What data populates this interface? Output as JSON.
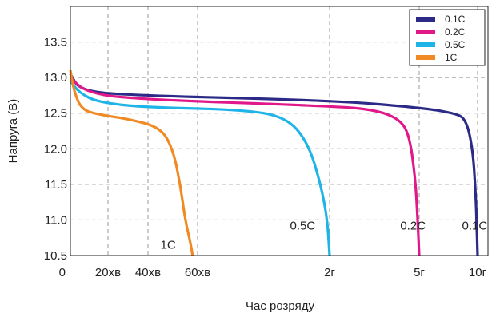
{
  "chart_data": {
    "type": "line",
    "title": "",
    "xlabel": "Час розряду",
    "ylabel": "Напруга (В)",
    "ylim": [
      10.5,
      14.0
    ],
    "grid": true,
    "legend_position": "top-right",
    "y_ticks": [
      "10.5",
      "11.0",
      "11.5",
      "12.0",
      "12.5",
      "13.0",
      "13.5"
    ],
    "x_ticks": [
      {
        "t": 0,
        "label": "0"
      },
      {
        "t": 20,
        "label": "20хв"
      },
      {
        "t": 40,
        "label": "40хв"
      },
      {
        "t": 60,
        "label": "60хв"
      },
      {
        "t": 120,
        "label": "2г"
      },
      {
        "t": 300,
        "label": "5г"
      },
      {
        "t": 600,
        "label": "10г"
      }
    ],
    "series": [
      {
        "name": "0.1C",
        "color": "#2b2a86",
        "points": [
          [
            0,
            13.05
          ],
          [
            5,
            12.82
          ],
          [
            30,
            12.75
          ],
          [
            120,
            12.68
          ],
          [
            300,
            12.58
          ],
          [
            480,
            12.5
          ],
          [
            540,
            12.42
          ],
          [
            575,
            12.0
          ],
          [
            590,
            11.4
          ],
          [
            597,
            10.8
          ],
          [
            600,
            10.5
          ]
        ]
      },
      {
        "name": "0.2C",
        "color": "#e0188a",
        "points": [
          [
            0,
            13.0
          ],
          [
            8,
            12.8
          ],
          [
            30,
            12.7
          ],
          [
            120,
            12.6
          ],
          [
            210,
            12.55
          ],
          [
            260,
            12.42
          ],
          [
            280,
            12.2
          ],
          [
            292,
            11.6
          ],
          [
            297,
            11.0
          ],
          [
            300,
            10.5
          ]
        ]
      },
      {
        "name": "0.5C",
        "color": "#1fb4e8",
        "points": [
          [
            0,
            12.95
          ],
          [
            5,
            12.78
          ],
          [
            15,
            12.65
          ],
          [
            40,
            12.58
          ],
          [
            80,
            12.55
          ],
          [
            100,
            12.45
          ],
          [
            110,
            12.1
          ],
          [
            116,
            11.5
          ],
          [
            119,
            11.0
          ],
          [
            120,
            10.5
          ]
        ]
      },
      {
        "name": "1C",
        "color": "#f08a24",
        "points": [
          [
            0,
            13.1
          ],
          [
            2,
            12.8
          ],
          [
            6,
            12.55
          ],
          [
            15,
            12.48
          ],
          [
            30,
            12.42
          ],
          [
            45,
            12.3
          ],
          [
            50,
            12.0
          ],
          [
            53,
            11.5
          ],
          [
            55,
            11.0
          ],
          [
            57,
            10.7
          ],
          [
            58,
            10.5
          ]
        ]
      }
    ],
    "annotations": [
      {
        "text": "1C",
        "t": 45,
        "v": 10.65
      },
      {
        "text": "0.5C",
        "t": 102,
        "v": 10.92
      },
      {
        "text": "0.2C",
        "t": 262,
        "v": 10.92
      },
      {
        "text": "0.1C",
        "t": 520,
        "v": 10.92
      }
    ]
  }
}
